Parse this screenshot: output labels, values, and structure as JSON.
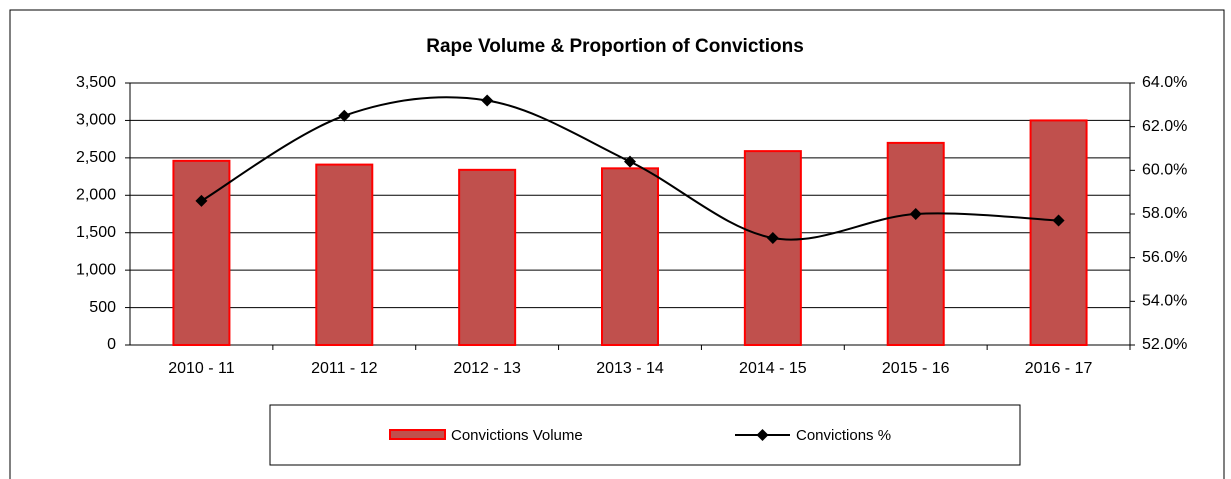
{
  "chart_data": {
    "type": "bar-line",
    "title": "Rape Volume & Proportion of Convictions",
    "categories": [
      "2010 - 11",
      "2011 - 12",
      "2012 - 13",
      "2013 - 14",
      "2014 - 15",
      "2015 - 16",
      "2016 - 17"
    ],
    "series": [
      {
        "name": "Convictions Volume",
        "type": "bar",
        "color": "#c0504d",
        "edge": "#ff0000",
        "values": [
          2460,
          2410,
          2340,
          2360,
          2590,
          2700,
          3000
        ]
      },
      {
        "name": "Convictions %",
        "type": "line",
        "axis": "y2",
        "color": "#000000",
        "values": [
          58.6,
          62.5,
          63.2,
          60.4,
          56.9,
          58.0,
          57.7
        ]
      }
    ],
    "ylim": [
      0,
      3500
    ],
    "yticks": [
      0,
      500,
      {
        "value": 1000,
        "label": "1,000"
      },
      {
        "value": 1500,
        "label": "1,500"
      },
      {
        "value": 2000,
        "label": "2,000"
      },
      {
        "value": 2500,
        "label": "2,500"
      },
      {
        "value": 3000,
        "label": "3,000"
      },
      {
        "value": 3500,
        "label": "3,500"
      }
    ],
    "y2lim": [
      52,
      64
    ],
    "y2ticks": [
      {
        "value": 52,
        "label": "52.0%"
      },
      {
        "value": 54,
        "label": "54.0%"
      },
      {
        "value": 56,
        "label": "56.0%"
      },
      {
        "value": 58,
        "label": "58.0%"
      },
      {
        "value": 60,
        "label": "60.0%"
      },
      {
        "value": 62,
        "label": "62.0%"
      },
      {
        "value": 64,
        "label": "64.0%"
      }
    ],
    "grid": true,
    "legend": "bottom"
  }
}
